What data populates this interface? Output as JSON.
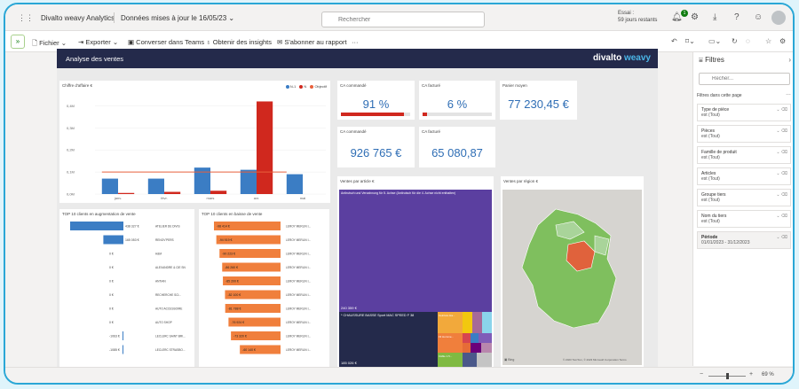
{
  "header": {
    "app_title": "Divalto weavy Analytics",
    "data_info": "Données mises à jour le 16/05/23",
    "search_placeholder": "Rechercher",
    "trial_line1": "Essai :",
    "trial_line2": "59 jours restants",
    "notification_count": "1"
  },
  "toolbar": {
    "file": "Fichier",
    "export": "Exporter",
    "teams": "Converser dans Teams",
    "insights": "Obtenir des insights",
    "subscribe": "S'abonner au rapport",
    "more": "···"
  },
  "report": {
    "title": "Analyse des ventes",
    "brand_a": "divalto",
    "brand_b": "weavy",
    "cards": {
      "ca_commande_pct_title": "CA commandé",
      "ca_commande_pct_value": "91 %",
      "ca_commande_pct_fill": 0.91,
      "ca_facture_pct_title": "CA facturé",
      "ca_facture_pct_value": "6 %",
      "ca_facture_pct_fill": 0.06,
      "panier_title": "Panier moyen",
      "panier_value": "77 230,45 €",
      "ca_commande_title": "CA commandé",
      "ca_commande_value": "926 765 €",
      "ca_facture_title": "CA facturé",
      "ca_facture_value": "65 080,87"
    },
    "chart_card_title": "Chiffre d'affaire €",
    "treemap_title": "Ventes par article €",
    "map_title": "Ventes par région €",
    "top_up_title": "TOP 10 clients en augmentation de vente",
    "top_down_title": "TOP 10 clients en baisse de vente",
    "treemap_labels": {
      "big": "Antirutsch und Verzahnung für 5. Achse (Antirutsch für die 4. Achse nicht enthalten)",
      "big_value": "240 359 €",
      "second": "* CHAUSSURE BASSE Sport MAC SPEED F 38",
      "second_value": "185 026 €",
      "small1": "Ceinture Ha...",
      "small2": "Fil Homme...",
      "small3": "Câble 1.5..."
    },
    "map_credit": "© 2023 TomTom, © 2023 Microsoft Corporation  Terms"
  },
  "filters": {
    "title": "Filtres",
    "search_placeholder": "Recher...",
    "subtitle": "Filtres dans cette page",
    "items": [
      {
        "name": "Type de pièce",
        "value": "est (Tout)"
      },
      {
        "name": "Pièces",
        "value": "est (Tout)"
      },
      {
        "name": "Famille de produit",
        "value": "est (Tout)"
      },
      {
        "name": "Articles",
        "value": "est (Tout)"
      },
      {
        "name": "Groupe tiers",
        "value": "est (Tout)"
      },
      {
        "name": "Nom du tiers",
        "value": "est (Tout)"
      },
      {
        "name": "Période",
        "value": "01/01/2023 - 31/12/2023"
      }
    ]
  },
  "status": {
    "zoom": "69 %"
  },
  "colors": {
    "accent": "#2f6eb5",
    "series_n1": "#3b7dc4",
    "series_n": "#d0281e",
    "objective": "#e8603c",
    "navy": "#242a4b",
    "orange": "#f07f3c",
    "purple": "#5b3fa0"
  },
  "chart_data": [
    {
      "type": "bar",
      "title": "Chiffre d'affaire €",
      "categories": [
        "janv.",
        "févr.",
        "mars",
        "avr.",
        "mai"
      ],
      "series": [
        {
          "name": "N-1",
          "values": [
            0.07,
            0.07,
            0.12,
            0.11,
            0.09
          ]
        },
        {
          "name": "N",
          "values": [
            0.005,
            0.01,
            0.015,
            0.42,
            0.0
          ]
        },
        {
          "name": "Objectif",
          "values": [
            0.1,
            0.1,
            0.1,
            0.1,
            0.1
          ]
        }
      ],
      "ylim": [
        0,
        0.45
      ],
      "yticks": [
        "0,0M",
        "0,1M",
        "0,2M",
        "0,3M",
        "0,4M"
      ]
    },
    {
      "type": "bar",
      "title": "TOP 10 clients en augmentation de vente",
      "categories": [
        "ATELIER DE DIVIS",
        "RENOV'PERS",
        "H&M",
        "ALEXANDRE & CIE SN",
        "ANTIAN",
        "RECHERCHE SCI...",
        "AUTO ACCESSOIRE",
        "AUTO SHOP",
        "LECLERC SAINT BRI...",
        "LECLERC STRASBO..."
      ],
      "values": [
        438327,
        165053,
        0,
        0,
        0,
        0,
        0,
        0,
        -1063,
        -1085
      ],
      "value_labels": [
        "438 327 €",
        "165 053 €",
        "0 €",
        "0 €",
        "0 €",
        "0 €",
        "0 €",
        "0 €",
        "-1063 €",
        "-1085 €"
      ]
    },
    {
      "type": "bar",
      "title": "TOP 10 clients en baisse de vente",
      "categories": [
        "LEROY MERLIN I...",
        "LEROY MERLIN I...",
        "LEROY MERLIN I...",
        "LEROY MERLIN I...",
        "LEROY MERLIN I...",
        "LEROY MERLIN I...",
        "LEROY MERLIN I...",
        "LEROY MERLIN I...",
        "LEROY MERLIN I...",
        "LEROY MERLIN I..."
      ],
      "values": [
        -98414,
        -94919,
        -90223,
        -86260,
        -85200,
        -82100,
        -81788,
        -76924,
        -73320,
        -60140
      ],
      "value_labels": [
        "-98 414 €",
        "-94 919 €",
        "-90 223 €",
        "-86 260 €",
        "-85 200 €",
        "-82 100 €",
        "-81 788 €",
        "-76 924 €",
        "-73 320 €",
        "-60 140 €"
      ]
    }
  ]
}
